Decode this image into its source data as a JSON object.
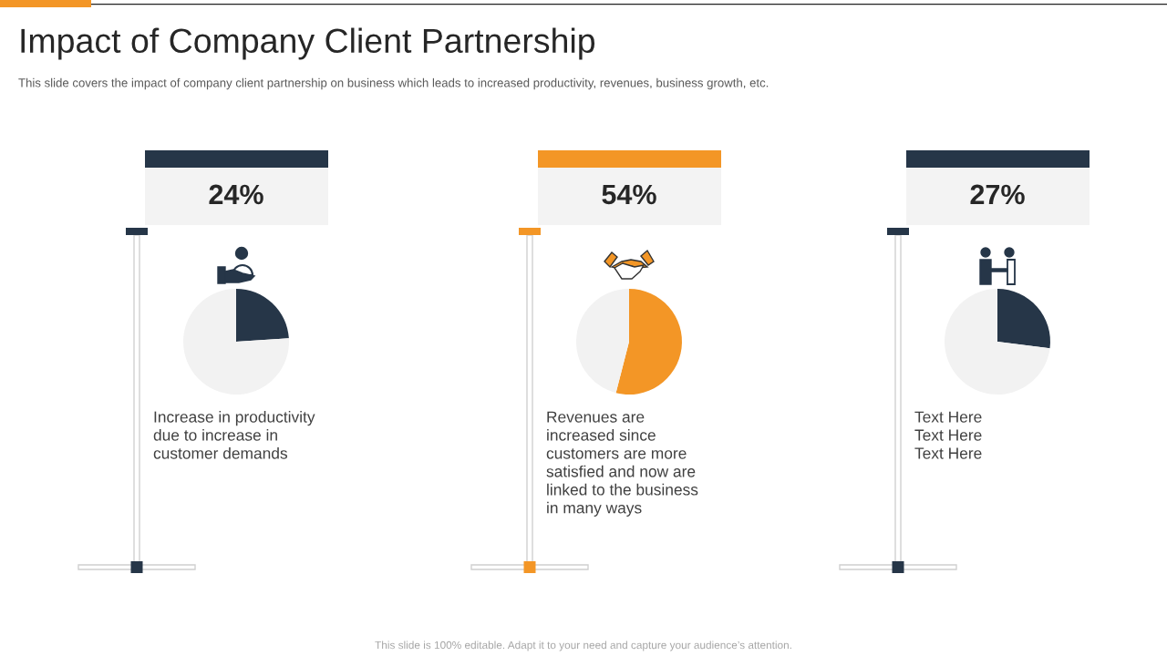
{
  "chart_data": [
    {
      "type": "pie",
      "title": "Impact of Company Client Partnership",
      "subtitle": "This slide covers the impact of company client partnership on business which leads to increased productivity, revenues, business growth, etc.",
      "categories": [
        null,
        null
      ],
      "values": [
        24,
        76
      ],
      "colors": [
        "#263648",
        "#f2f2f2"
      ],
      "value_labels": [
        "24%",
        null
      ],
      "annotations": [
        "Increase in productivity\ndue to increase in\ncustomer demands",
        "This slide is 100% editable. Adapt it to your need and capture your audience’s attention."
      ]
    },
    {
      "type": "pie",
      "categories": [
        null,
        null
      ],
      "values": [
        54,
        46
      ],
      "colors": [
        "#f39626",
        "#f2f2f2"
      ],
      "value_labels": [
        "54%",
        null
      ],
      "annotations": [
        "Revenues are\nincreased since\ncustomers are more\nsatisfied and now are\nlinked to the business\nin many ways"
      ]
    },
    {
      "type": "pie",
      "categories": [
        null,
        null
      ],
      "values": [
        27,
        73
      ],
      "colors": [
        "#263648",
        "#f2f2f2"
      ],
      "value_labels": [
        "27%",
        null
      ],
      "annotations": [
        "Text Here\nText Here\nText Here"
      ]
    }
  ]
}
